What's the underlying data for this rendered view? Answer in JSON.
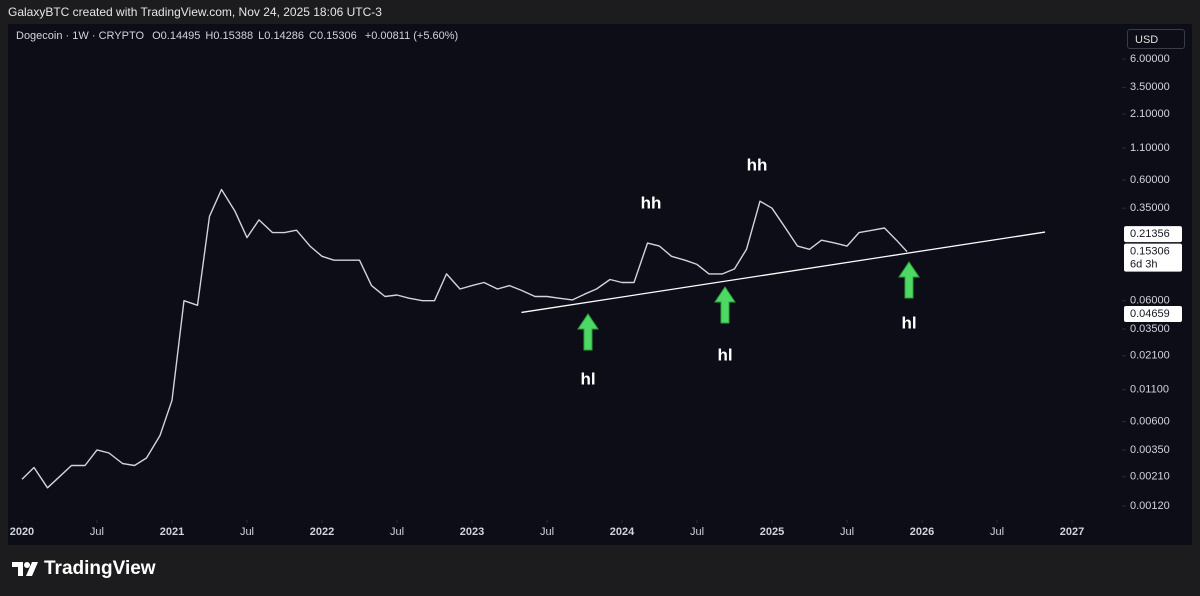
{
  "header": {
    "attribution": "GalaxyBTC created with TradingView.com, Nov 24, 2025 18:06 UTC-3"
  },
  "footer": {
    "logo": "TradingView"
  },
  "chart_data": {
    "type": "line",
    "symbol": "Dogecoin",
    "separator": "·",
    "interval": "1W",
    "exchange": "CRYPTO",
    "ohlc": [
      {
        "label": "O",
        "value": 0.14495
      },
      {
        "label": "H",
        "value": 0.15388
      },
      {
        "label": "L",
        "value": 0.14286
      },
      {
        "label": "C",
        "value": 0.15306
      }
    ],
    "change": {
      "value": 0.00811,
      "label": "+0.00811"
    },
    "change_pct": {
      "value": 5.6,
      "label": "(+5.60%)"
    },
    "currency": "USD",
    "log_scale": true,
    "color": "#d1d4dc",
    "x": [
      2020.0,
      2020.08,
      2020.17,
      2020.25,
      2020.33,
      2020.42,
      2020.5,
      2020.58,
      2020.67,
      2020.75,
      2020.83,
      2020.92,
      2021.0,
      2021.08,
      2021.17,
      2021.25,
      2021.33,
      2021.42,
      2021.5,
      2021.58,
      2021.67,
      2021.75,
      2021.83,
      2021.92,
      2022.0,
      2022.08,
      2022.17,
      2022.25,
      2022.33,
      2022.42,
      2022.5,
      2022.58,
      2022.67,
      2022.75,
      2022.83,
      2022.92,
      2023.0,
      2023.08,
      2023.17,
      2023.25,
      2023.33,
      2023.42,
      2023.5,
      2023.58,
      2023.67,
      2023.75,
      2023.83,
      2023.92,
      2024.0,
      2024.08,
      2024.17,
      2024.25,
      2024.33,
      2024.42,
      2024.5,
      2024.58,
      2024.67,
      2024.75,
      2024.83,
      2024.92,
      2025.0,
      2025.08,
      2025.17,
      2025.25,
      2025.33,
      2025.42,
      2025.5,
      2025.58,
      2025.67,
      2025.75,
      2025.83,
      2025.9
    ],
    "values": [
      0.002,
      0.0025,
      0.0017,
      0.0021,
      0.0026,
      0.0026,
      0.0035,
      0.0033,
      0.0027,
      0.0026,
      0.003,
      0.0046,
      0.009,
      0.06,
      0.055,
      0.3,
      0.5,
      0.33,
      0.2,
      0.28,
      0.22,
      0.22,
      0.23,
      0.17,
      0.14,
      0.13,
      0.13,
      0.13,
      0.08,
      0.065,
      0.067,
      0.063,
      0.06,
      0.06,
      0.1,
      0.075,
      0.08,
      0.085,
      0.075,
      0.08,
      0.073,
      0.065,
      0.065,
      0.063,
      0.061,
      0.068,
      0.075,
      0.09,
      0.085,
      0.085,
      0.18,
      0.17,
      0.14,
      0.13,
      0.12,
      0.1,
      0.1,
      0.11,
      0.16,
      0.4,
      0.35,
      0.25,
      0.17,
      0.16,
      0.19,
      0.18,
      0.17,
      0.22,
      0.23,
      0.24,
      0.19,
      0.153
    ],
    "trendline": {
      "x": [
        2023.33,
        2026.82
      ],
      "values": [
        0.048,
        0.222
      ],
      "color": "#ffffff"
    },
    "price_labels": [
      0.21356,
      0.15306,
      0.04659
    ],
    "countdown": "6d 3h",
    "annotations": [
      "hh",
      "hh",
      "hl",
      "hl",
      "hl"
    ],
    "arrow_color": "#4cd964",
    "xlim": [
      2019.907,
      2027.333
    ],
    "ylim": [
      0.00092,
      11.7
    ],
    "xticks": [
      2020,
      {
        "value": 2020.5,
        "label": "Jul"
      },
      2021,
      {
        "value": 2021.5,
        "label": "Jul"
      },
      2022,
      {
        "value": 2022.5,
        "label": "Jul"
      },
      2023,
      {
        "value": 2023.5,
        "label": "Jul"
      },
      2024,
      {
        "value": 2024.5,
        "label": "Jul"
      },
      2025,
      {
        "value": 2025.5,
        "label": "Jul"
      },
      2026,
      {
        "value": 2026.5,
        "label": "Jul"
      },
      2027
    ],
    "yticks": [
      {
        "value": 6,
        "label": "6.00000"
      },
      {
        "value": 3.5,
        "label": "3.50000"
      },
      {
        "value": 2.1,
        "label": "2.10000"
      },
      {
        "value": 1.1,
        "label": "1.10000"
      },
      {
        "value": 0.6,
        "label": "0.60000"
      },
      {
        "value": 0.35,
        "label": "0.35000"
      },
      {
        "value": 0.06,
        "label": "0.06000"
      },
      {
        "value": 0.035,
        "label": "0.03500"
      },
      {
        "value": 0.021,
        "label": "0.02100"
      },
      {
        "value": 0.011,
        "label": "0.01100"
      },
      {
        "value": 0.006,
        "label": "0.00600"
      },
      {
        "value": 0.0035,
        "label": "0.00350"
      },
      {
        "value": 0.0021,
        "label": "0.00210"
      },
      {
        "value": 0.0012,
        "label": "0.00120"
      }
    ]
  }
}
